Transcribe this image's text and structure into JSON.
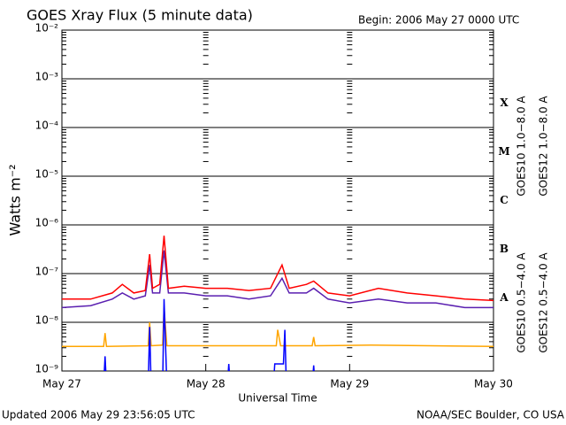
{
  "chart_data": {
    "type": "line",
    "title": "GOES Xray Flux (5 minute data)",
    "subtitle": "Begin:  2006 May 27 0000 UTC",
    "xlabel": "Universal Time",
    "ylabel": "Watts m⁻²",
    "footer_left": "Updated 2006 May 29 23:56:05 UTC",
    "footer_right": "NOAA/SEC Boulder, CO USA",
    "log_scale": true,
    "grid": true,
    "xlim": [
      0,
      3
    ],
    "xticks": [
      {
        "value": 0,
        "label": "May 27"
      },
      {
        "value": 1,
        "label": "May 28"
      },
      {
        "value": 2,
        "label": "May 29"
      },
      {
        "value": 3,
        "label": "May 30"
      }
    ],
    "ylim": [
      1e-09,
      0.01
    ],
    "yticks": [
      {
        "value": 1e-09,
        "label": "10⁻⁹"
      },
      {
        "value": 1e-08,
        "label": "10⁻⁸"
      },
      {
        "value": 1e-07,
        "label": "10⁻⁷"
      },
      {
        "value": 1e-06,
        "label": "10⁻⁶"
      },
      {
        "value": 1e-05,
        "label": "10⁻⁵"
      },
      {
        "value": 0.0001,
        "label": "10⁻⁴"
      },
      {
        "value": 0.001,
        "label": "10⁻³"
      },
      {
        "value": 0.01,
        "label": "10⁻²"
      }
    ],
    "flare_classes": [
      "X",
      "M",
      "C",
      "B",
      "A"
    ],
    "series": [
      {
        "name": "GOES10 1.0−8.0 A",
        "color": "#5a1fb0",
        "x": [
          0,
          0.2,
          0.35,
          0.42,
          0.5,
          0.58,
          0.61,
          0.63,
          0.68,
          0.71,
          0.74,
          0.85,
          1.0,
          1.15,
          1.3,
          1.45,
          1.53,
          1.58,
          1.7,
          1.75,
          1.85,
          2.0,
          2.2,
          2.4,
          2.6,
          2.8,
          3.0
        ],
        "values": [
          2e-08,
          2.2e-08,
          3e-08,
          4e-08,
          3e-08,
          3.5e-08,
          1.5e-07,
          4e-08,
          4e-08,
          3e-07,
          4e-08,
          4e-08,
          3.5e-08,
          3.5e-08,
          3e-08,
          3.5e-08,
          8e-08,
          4e-08,
          4e-08,
          5e-08,
          3e-08,
          2.5e-08,
          3e-08,
          2.5e-08,
          2.5e-08,
          2e-08,
          2e-08
        ]
      },
      {
        "name": "GOES12 1.0−8.0 A",
        "color": "#ff0000",
        "x": [
          0,
          0.2,
          0.35,
          0.42,
          0.5,
          0.58,
          0.61,
          0.63,
          0.68,
          0.71,
          0.74,
          0.85,
          1.0,
          1.15,
          1.3,
          1.45,
          1.53,
          1.58,
          1.7,
          1.75,
          1.85,
          2.0,
          2.2,
          2.4,
          2.6,
          2.8,
          3.0
        ],
        "values": [
          3e-08,
          3e-08,
          4e-08,
          6e-08,
          4e-08,
          4.5e-08,
          2.5e-07,
          5e-08,
          6e-08,
          6e-07,
          5e-08,
          5.5e-08,
          5e-08,
          5e-08,
          4.5e-08,
          5e-08,
          1.5e-07,
          5e-08,
          6e-08,
          7e-08,
          4e-08,
          3.5e-08,
          5e-08,
          4e-08,
          3.5e-08,
          3e-08,
          2.8e-08
        ]
      },
      {
        "name": "GOES10 0.5−4.0 A",
        "color": "#ffa500",
        "x": [
          0,
          0.29,
          0.3,
          0.31,
          0.6,
          0.61,
          0.62,
          0.7,
          0.71,
          0.73,
          1.49,
          1.5,
          1.52,
          1.74,
          1.75,
          1.76,
          2.15,
          3.0
        ],
        "values": [
          3.2e-09,
          3.2e-09,
          6e-09,
          3.2e-09,
          3.3e-09,
          1e-08,
          3.3e-09,
          3.4e-09,
          2e-08,
          3.3e-09,
          3.3e-09,
          7e-09,
          3.3e-09,
          3.3e-09,
          5e-09,
          3.3e-09,
          3.4e-09,
          3.2e-09
        ]
      },
      {
        "name": "GOES12 0.5−4.0 A",
        "color": "#0000ff",
        "x": [
          0,
          0.29,
          0.3,
          0.31,
          0.6,
          0.61,
          0.62,
          0.7,
          0.71,
          0.73,
          1.15,
          1.16,
          1.17,
          1.47,
          1.48,
          1.54,
          1.55,
          1.56,
          1.57,
          1.74,
          1.75,
          1.76,
          3.0
        ],
        "values": [
          5e-10,
          5e-10,
          2e-09,
          5e-10,
          5e-10,
          8e-09,
          5e-10,
          5e-10,
          3e-08,
          5e-10,
          5e-10,
          1.4e-09,
          5e-10,
          5e-10,
          1.4e-09,
          1.4e-09,
          7e-09,
          5e-10,
          5e-10,
          5e-10,
          1.3e-09,
          5e-10,
          5e-10
        ]
      }
    ]
  }
}
